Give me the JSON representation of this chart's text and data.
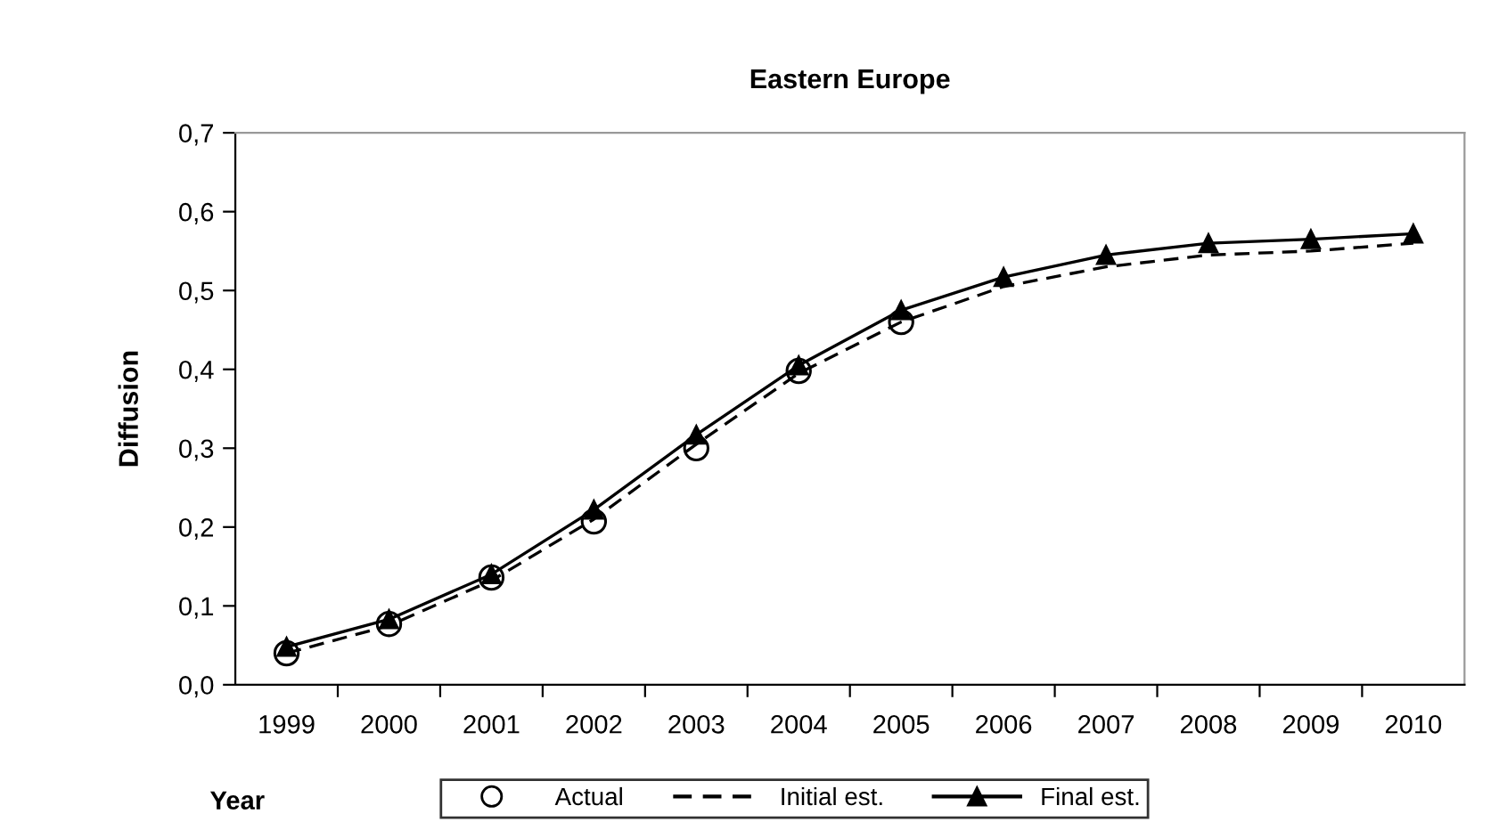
{
  "chart_data": {
    "type": "line",
    "title": "Eastern Europe",
    "xlabel": "Year",
    "ylabel": "Diffusion",
    "categories": [
      "1999",
      "2000",
      "2001",
      "2002",
      "2003",
      "2004",
      "2005",
      "2006",
      "2007",
      "2008",
      "2009",
      "2010"
    ],
    "series": [
      {
        "name": "Actual",
        "color": "#000000",
        "type": "scatter",
        "marker": "circle",
        "values": [
          0.04,
          0.077,
          0.136,
          0.207,
          0.3,
          0.398,
          0.46,
          null,
          null,
          null,
          null,
          null
        ]
      },
      {
        "name": "Initial est.",
        "color": "#000000",
        "line_style": "dashed",
        "marker": "none",
        "values": [
          0.04,
          0.075,
          0.132,
          0.21,
          0.305,
          0.395,
          0.46,
          0.505,
          0.53,
          0.545,
          0.55,
          0.56
        ]
      },
      {
        "name": "Final est.",
        "color": "#000000",
        "line_style": "solid",
        "marker": "triangle",
        "values": [
          0.048,
          0.083,
          0.14,
          0.222,
          0.317,
          0.405,
          0.475,
          0.517,
          0.545,
          0.56,
          0.565,
          0.572
        ]
      }
    ],
    "ylim": [
      0,
      0.7
    ],
    "yticks": [
      {
        "value": 0,
        "label": "0,0"
      },
      {
        "value": 0.1,
        "label": "0,1"
      },
      {
        "value": 0.2,
        "label": "0,2"
      },
      {
        "value": 0.3,
        "label": "0,3"
      },
      {
        "value": 0.4,
        "label": "0,4"
      },
      {
        "value": 0.5,
        "label": "0,5"
      },
      {
        "value": 0.6,
        "label": "0,6"
      },
      {
        "value": 0.7,
        "label": "0,7"
      }
    ],
    "grid": false,
    "legend": "bottom"
  }
}
